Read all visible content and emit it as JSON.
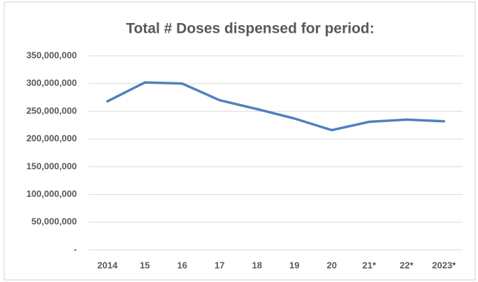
{
  "chart_data": {
    "type": "line",
    "title": "Total # Doses dispensed for period:",
    "categories": [
      "2014",
      "15",
      "16",
      "17",
      "18",
      "19",
      "20",
      "21*",
      "22*",
      "2023*"
    ],
    "series": [
      {
        "name": "Total # Doses dispensed",
        "color": "#4f81bd",
        "values": [
          268000000,
          302000000,
          300000000,
          270000000,
          254000000,
          237000000,
          216000000,
          231000000,
          235000000,
          232000000
        ]
      }
    ],
    "ylim": [
      0,
      350000000
    ],
    "yticks": [
      {
        "value": 0,
        "label": "-"
      },
      {
        "value": 50000000,
        "label": "50,000,000"
      },
      {
        "value": 100000000,
        "label": "100,000,000"
      },
      {
        "value": 150000000,
        "label": "150,000,000"
      },
      {
        "value": 200000000,
        "label": "200,000,000"
      },
      {
        "value": 250000000,
        "label": "250,000,000"
      },
      {
        "value": 300000000,
        "label": "300,000,000"
      },
      {
        "value": 350000000,
        "label": "350,000,000"
      }
    ],
    "grid": true
  }
}
